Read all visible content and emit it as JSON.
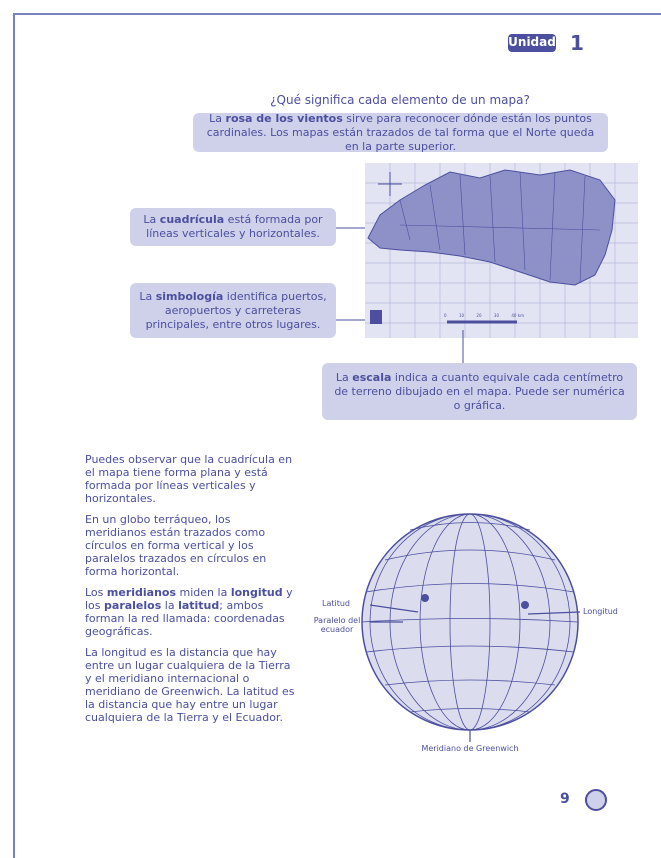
{
  "header": {
    "unit_label": "Unidad",
    "unit_number": "1"
  },
  "title": "¿Qué significa cada elemento de un mapa?",
  "callouts": [
    {
      "parts": [
        {
          "text": "La ",
          "bold": false
        },
        {
          "text": "rosa de los vientos",
          "bold": true
        },
        {
          "text": " sirve para reconocer dónde están los puntos cardinales. Los mapas están trazados de tal forma que el Norte queda en la parte superior.",
          "bold": false
        }
      ]
    },
    {
      "parts": [
        {
          "text": "La ",
          "bold": false
        },
        {
          "text": "cuadrícula",
          "bold": true
        },
        {
          "text": " está formada por líneas verticales y horizontales.",
          "bold": false
        }
      ]
    },
    {
      "parts": [
        {
          "text": "La ",
          "bold": false
        },
        {
          "text": "simbología",
          "bold": true
        },
        {
          "text": " identifica puertos, aeropuertos y carreteras principales, entre otros lugares.",
          "bold": false
        }
      ]
    },
    {
      "parts": [
        {
          "text": "La ",
          "bold": false
        },
        {
          "text": "escala",
          "bold": true
        },
        {
          "text": " indica a cuanto equivale cada centímetro de terreno dibujado en el mapa. Puede ser numérica o gráfica.",
          "bold": false
        }
      ]
    }
  ],
  "map": {
    "scale_labels": [
      "0",
      "10",
      "20",
      "30",
      "40 km"
    ]
  },
  "paragraphs": [
    {
      "parts": [
        {
          "text": "Puedes observar que la cuadrícula en el mapa tiene forma plana y está formada por líneas verticales y horizontales.",
          "bold": false
        }
      ]
    },
    {
      "parts": [
        {
          "text": "En un globo terráqueo, los meridianos están trazados como círculos en forma vertical y los paralelos trazados en círculos en forma horizontal.",
          "bold": false
        }
      ]
    },
    {
      "parts": [
        {
          "text": "Los ",
          "bold": false
        },
        {
          "text": "meridianos",
          "bold": true
        },
        {
          "text": " miden la ",
          "bold": false
        },
        {
          "text": "longitud",
          "bold": true
        },
        {
          "text": " y los ",
          "bold": false
        },
        {
          "text": "paralelos",
          "bold": true
        },
        {
          "text": " la ",
          "bold": false
        },
        {
          "text": "latitud",
          "bold": true
        },
        {
          "text": "; ambos forman la red llamada: coordenadas geográficas.",
          "bold": false
        }
      ]
    },
    {
      "parts": [
        {
          "text": "La longitud es la distancia que hay entre un lugar cualquiera de la Tierra y el meridiano internacional o meridiano de Greenwich. La latitud es la distancia que hay entre un lugar cualquiera de la Tierra y el Ecuador.",
          "bold": false
        }
      ]
    }
  ],
  "globe": {
    "latitude_label": "Latitud",
    "equator_label": "Paralelo del ecuador",
    "longitude_label": "Longitud",
    "greenwich_label": "Meridiano de Greenwich"
  },
  "page_number": "9"
}
